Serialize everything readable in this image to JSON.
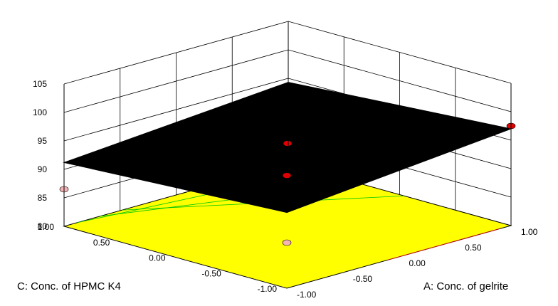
{
  "chart_data": {
    "type": "surface3d",
    "title": "",
    "xlabel": "A: Conc. of gelrite",
    "ylabel": "C: Conc. of HPMC K4",
    "zlabel": "",
    "xlim": [
      -1,
      1
    ],
    "ylim": [
      -1,
      1
    ],
    "zlim": [
      80,
      105
    ],
    "x_ticks": [
      "-1.00",
      "-0.50",
      "0.00",
      "0.50",
      "1.00"
    ],
    "y_ticks": [
      "-1.00",
      "-0.50",
      "0.00",
      "0.50",
      "1.00"
    ],
    "z_ticks": [
      "80",
      "85",
      "90",
      "95",
      "100",
      "105"
    ],
    "surface": {
      "model": "linear",
      "corners": [
        {
          "x": -1,
          "y": -1,
          "z": 93.3
        },
        {
          "x": 1,
          "y": -1,
          "z": 97.0
        },
        {
          "x": -1,
          "y": 1,
          "z": 91.2
        },
        {
          "x": 1,
          "y": 1,
          "z": 94.3
        }
      ],
      "color": "#000000"
    },
    "floor_contour": {
      "color": "#ffff00",
      "line_colors": [
        "#00c800",
        "#00c800",
        "#00c800",
        "#e00000"
      ]
    },
    "design_points": [
      {
        "x": -1,
        "y": 1,
        "z": 86.5,
        "relation": "below-surface",
        "color": "#f4b4b4"
      },
      {
        "x": 1,
        "y": -1,
        "z": 97.5,
        "relation": "above-surface",
        "color": "#e00000"
      },
      {
        "x": -1,
        "y": -1,
        "z": 99.8,
        "relation": "above-surface",
        "color": "#e00000"
      },
      {
        "x": -1,
        "y": -1,
        "z": 88.0,
        "relation": "below-surface",
        "color": "#f4b4b4"
      },
      {
        "x": 0,
        "y": 0,
        "z": 94.5,
        "relation": "above-surface",
        "color": "#e00000"
      }
    ],
    "grid": true
  }
}
